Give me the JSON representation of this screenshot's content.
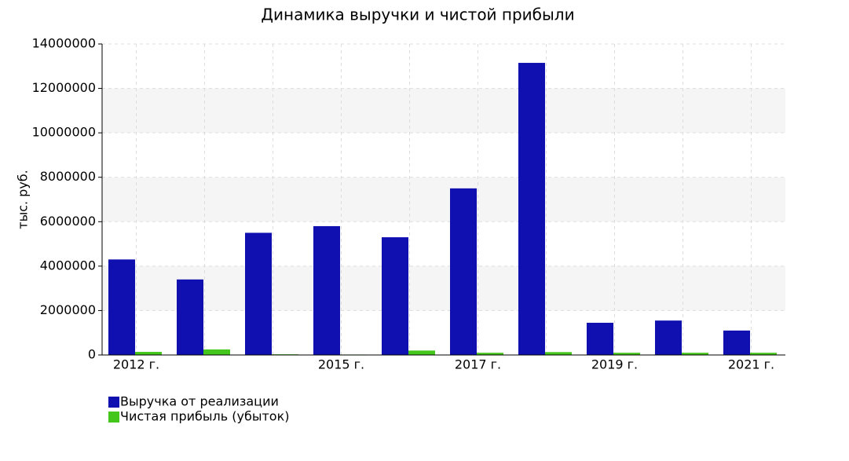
{
  "chart_data": {
    "type": "bar",
    "title": "Динамика выручки и чистой прибыли",
    "y_label": "тыс. руб.",
    "categories": [
      "2012 г.",
      null,
      null,
      "2015 г.",
      null,
      "2017 г.",
      null,
      "2019 г.",
      null,
      "2021 г."
    ],
    "series": [
      {
        "name": "Выручка от реализации",
        "color": "#1010b0",
        "values": [
          4300000,
          3400000,
          5500000,
          5800000,
          5300000,
          7500000,
          13150000,
          1450000,
          1550000,
          1100000
        ]
      },
      {
        "name": "Чистая прибыль (убыток)",
        "color": "#44c61c",
        "values": [
          140000,
          250000,
          30000,
          20000,
          200000,
          100000,
          130000,
          100000,
          100000,
          100000
        ]
      }
    ],
    "ylim": [
      0,
      14000000
    ],
    "yticks": [
      0,
      2000000,
      4000000,
      6000000,
      8000000,
      10000000,
      12000000,
      14000000
    ],
    "grid": true
  }
}
